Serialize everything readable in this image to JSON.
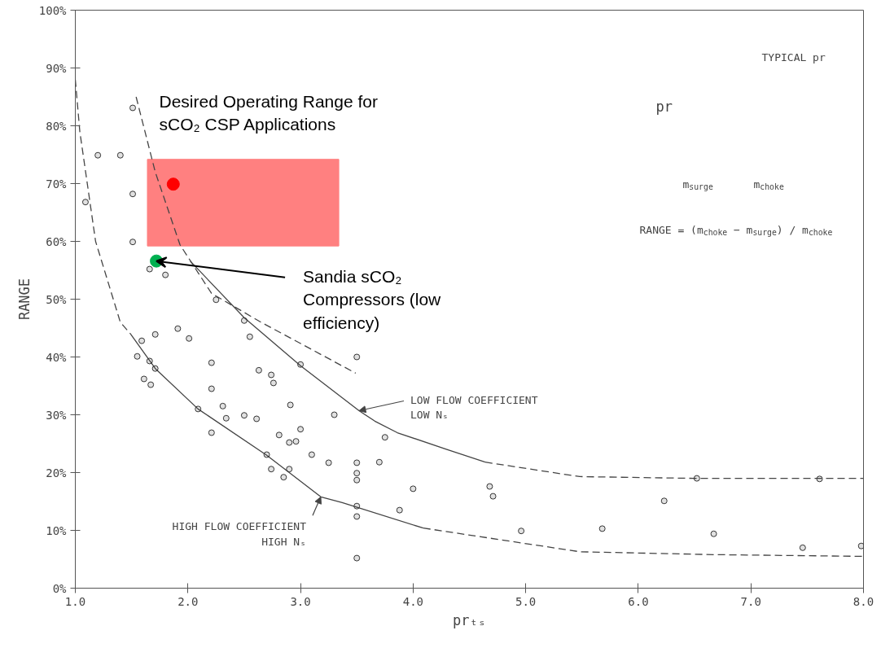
{
  "chart_data": {
    "type": "scatter",
    "xlabel": "prₜₛ",
    "ylabel": "RANGE",
    "xlim": [
      1,
      8
    ],
    "ylim": [
      0,
      100
    ],
    "xticks": [
      {
        "value": 1,
        "label": "1.0"
      },
      {
        "value": 2,
        "label": "2.0"
      },
      {
        "value": 3,
        "label": "3.0"
      },
      {
        "value": 4,
        "label": "4.0"
      },
      {
        "value": 5,
        "label": "5.0"
      },
      {
        "value": 6,
        "label": "6.0"
      },
      {
        "value": 7,
        "label": "7.0"
      },
      {
        "value": 8,
        "label": "8.0"
      }
    ],
    "yticks": [
      {
        "value": 0,
        "label": "0%"
      },
      {
        "value": 10,
        "label": "10%"
      },
      {
        "value": 20,
        "label": "20%"
      },
      {
        "value": 30,
        "label": "30%"
      },
      {
        "value": 40,
        "label": "40%"
      },
      {
        "value": 50,
        "label": "50%"
      },
      {
        "value": 60,
        "label": "60%"
      },
      {
        "value": 70,
        "label": "70%"
      },
      {
        "value": 80,
        "label": "80%"
      },
      {
        "value": 90,
        "label": "90%"
      },
      {
        "value": 100,
        "label": "100%"
      }
    ],
    "grid": false,
    "series": [
      {
        "type": "area",
        "color": "#ff8080",
        "x": [
          1.64,
          3.34
        ],
        "values": [
          null,
          null
        ],
        "lower": [
          59.2,
          59.2
        ],
        "upper": [
          74.2,
          74.2
        ]
      },
      {
        "type": "line",
        "color": "#444444",
        "line_style": "dashed",
        "x": [
          1.0,
          1.04,
          1.18,
          1.4,
          1.49
        ],
        "values": [
          88,
          79,
          60,
          46,
          44
        ]
      },
      {
        "type": "line",
        "color": "#444444",
        "line_style": "solid",
        "x": [
          1.49,
          1.71,
          2.09,
          2.7,
          3.18,
          3.37,
          4.09
        ],
        "values": [
          44,
          38,
          31,
          23,
          15.8,
          14.8,
          10.4
        ]
      },
      {
        "type": "line",
        "color": "#444444",
        "line_style": "dashed",
        "x": [
          4.09,
          5.48,
          6.68,
          8.0
        ],
        "values": [
          10.4,
          6.3,
          5.8,
          5.5
        ]
      },
      {
        "type": "line",
        "color": "#444444",
        "line_style": "dashed",
        "x": [
          1.54,
          1.71,
          1.93,
          2.21,
          2.65,
          3.49
        ],
        "values": [
          85,
          72,
          59.4,
          51,
          46,
          37.2
        ]
      },
      {
        "type": "line",
        "color": "#444444",
        "line_style": "solid",
        "x": [
          2.02,
          2.5,
          3.0,
          3.52,
          3.66,
          3.86,
          4.3,
          4.64
        ],
        "values": [
          56.6,
          46.8,
          38.5,
          30.7,
          28.9,
          26.9,
          24,
          21.8
        ]
      },
      {
        "type": "line",
        "color": "#444444",
        "line_style": "dashed",
        "x": [
          4.64,
          5.48,
          6.5,
          8.0
        ],
        "values": [
          21.8,
          19.3,
          19.0,
          19.0
        ]
      },
      {
        "color": "#333333",
        "marker": "circle",
        "x": [
          1.51,
          1.2,
          1.4,
          1.51,
          1.09,
          1.51,
          1.66,
          1.8,
          2.25,
          2.5,
          2.55,
          1.71,
          1.91,
          2.01,
          3.5,
          3.0,
          1.59,
          1.55,
          1.66,
          1.71,
          1.61,
          1.67,
          2.21,
          2.63,
          2.74,
          2.76,
          2.21,
          2.91,
          3.3,
          2.31,
          2.34,
          2.5,
          2.61,
          2.09,
          2.21,
          2.81,
          3.0,
          2.9,
          2.96,
          3.1,
          3.25,
          2.7,
          2.74,
          2.9,
          2.85,
          3.5,
          3.5,
          3.5,
          3.5,
          3.5,
          3.5,
          3.75,
          3.7,
          4.0,
          3.88,
          4.68,
          4.71,
          4.96,
          5.68,
          6.23,
          6.52,
          6.67,
          7.46,
          7.61,
          7.98
        ],
        "values": [
          83.1,
          74.9,
          74.9,
          68.2,
          66.8,
          59.9,
          55.2,
          54.2,
          49.9,
          46.3,
          43.5,
          43.9,
          44.9,
          43.2,
          40.0,
          38.7,
          42.8,
          40.1,
          39.3,
          38.0,
          36.2,
          35.2,
          39.0,
          37.7,
          36.9,
          35.5,
          34.5,
          31.7,
          30.0,
          31.5,
          29.4,
          29.9,
          29.3,
          31.0,
          26.9,
          26.5,
          27.5,
          25.2,
          25.4,
          23.1,
          21.7,
          23.1,
          20.6,
          20.6,
          19.2,
          21.7,
          19.9,
          18.7,
          14.2,
          12.4,
          5.2,
          26.1,
          21.8,
          17.2,
          13.5,
          17.6,
          15.9,
          9.9,
          10.3,
          15.1,
          19.0,
          9.4,
          7.0,
          18.9,
          7.3
        ]
      },
      {
        "color": "#ff0000",
        "marker": "circle",
        "x": [
          1.87
        ],
        "values": [
          69.9
        ]
      },
      {
        "color": "#00b050",
        "marker": "circle",
        "x": [
          1.72
        ],
        "values": [
          56.6
        ]
      }
    ],
    "annotations": [
      "Desired Operating Range for\nsCO₂ CSP Applications",
      {
        "text": "Sandia sCO₂\nCompressors (low\nefficiency)",
        "x": 1.72,
        "y": 56.6
      },
      {
        "text": "LOW FLOW COEFFICIENT\nLOW Nₛ",
        "x": 3.52,
        "y": 30.7
      },
      {
        "text": "HIGH FLOW COEFFICIENT\nHIGH Nₛ",
        "x": 3.18,
        "y": 15.8
      },
      "TYPICAL pr",
      "pr",
      "m$_{surge}$",
      "m$_{choke}$",
      "RANGE = (m$_{choke}$ − m$_{surge}$) / m$_{choke}$"
    ]
  }
}
